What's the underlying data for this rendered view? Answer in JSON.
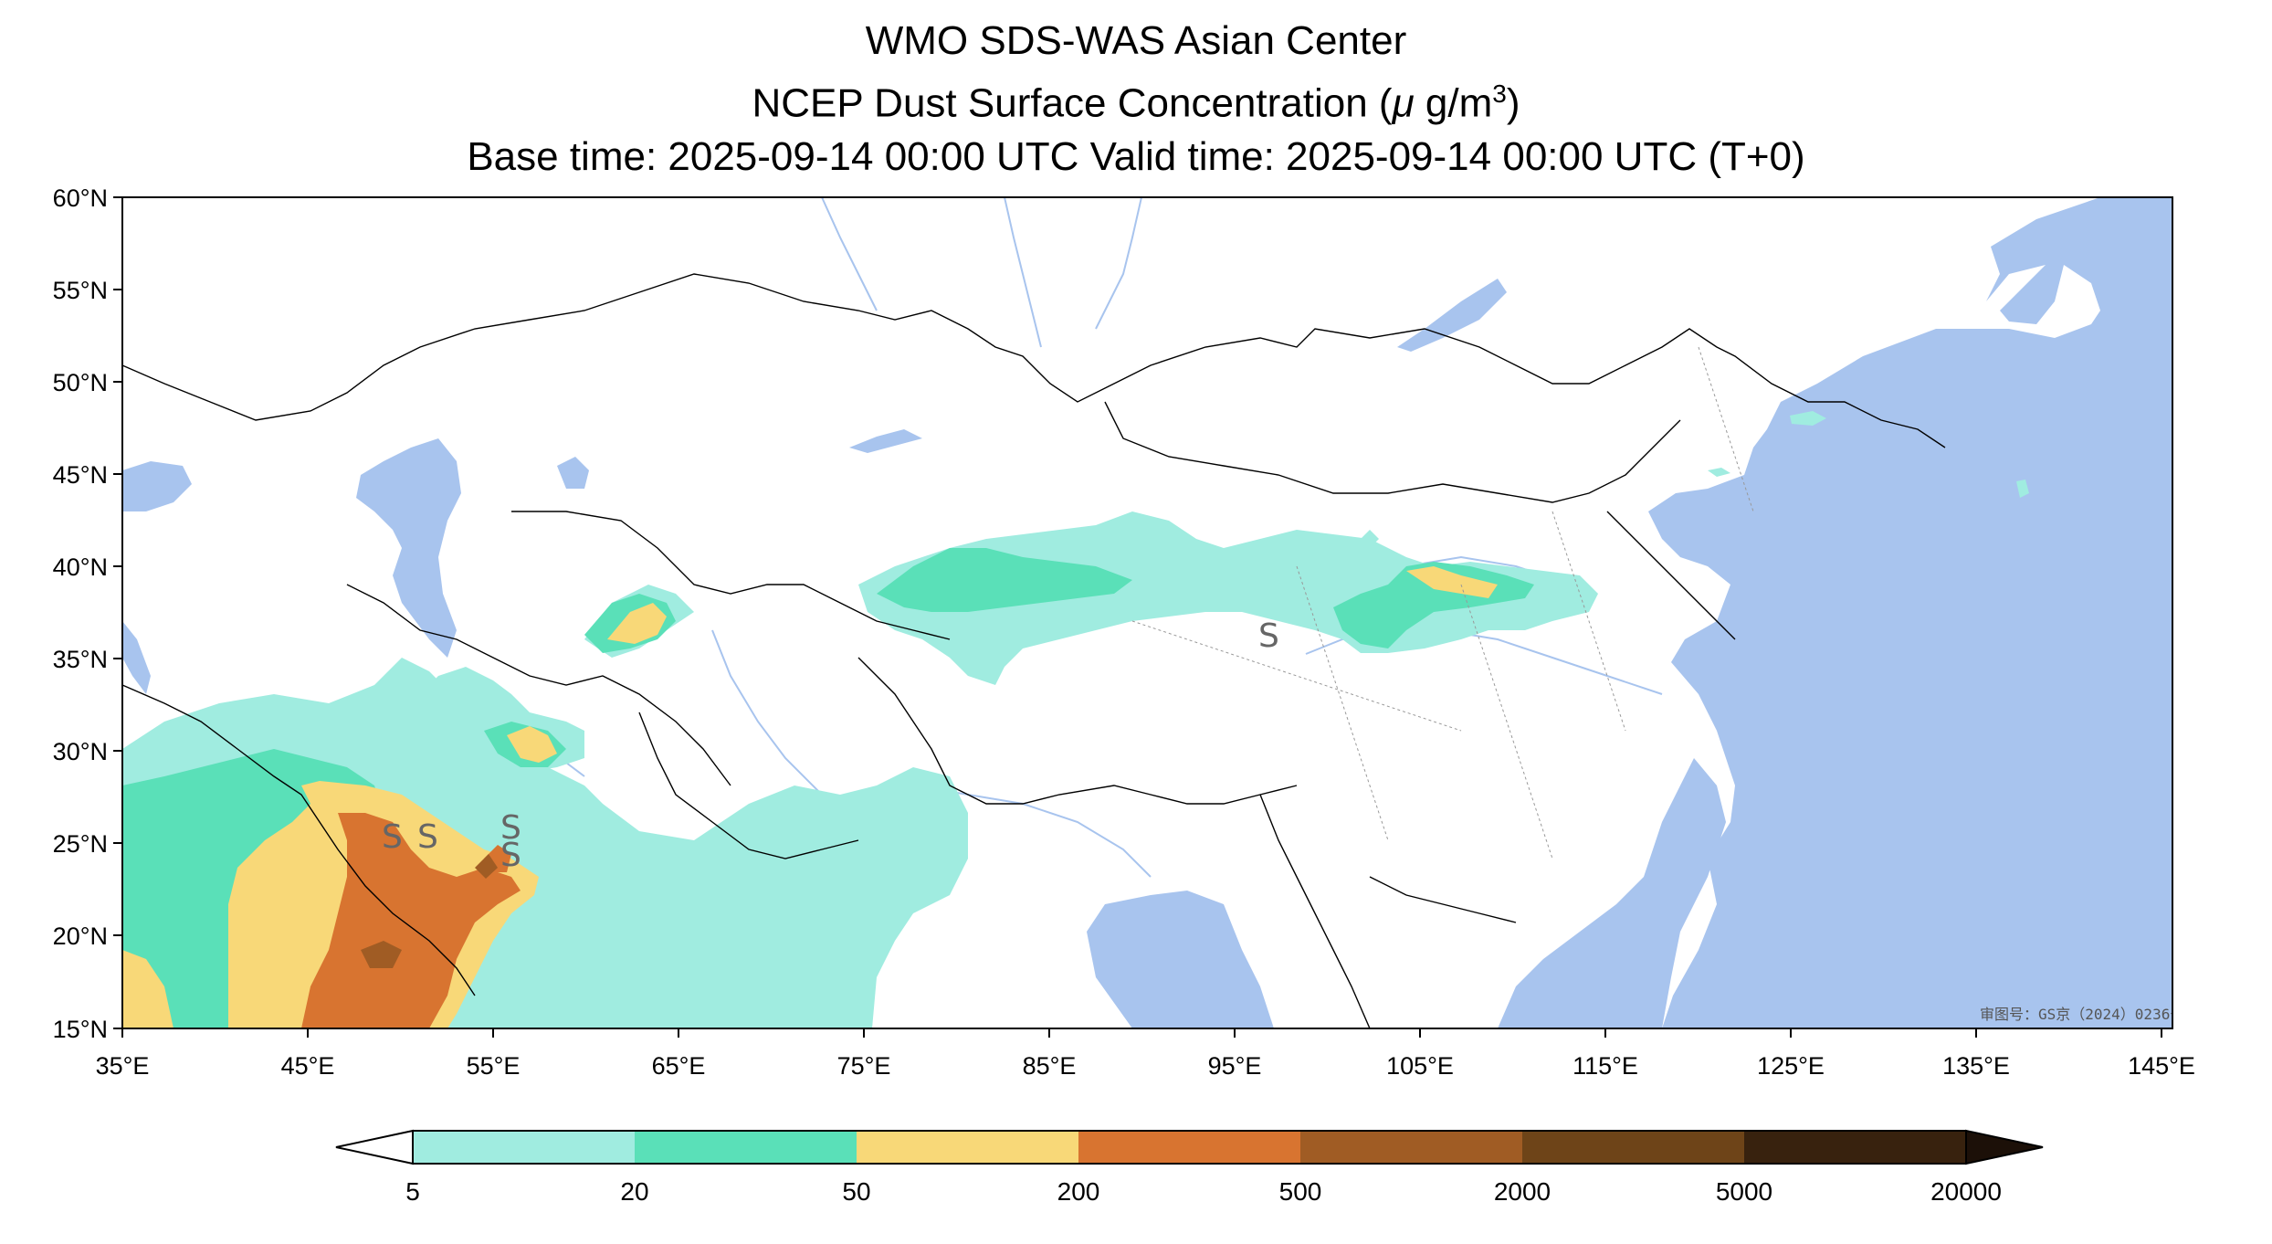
{
  "titles": {
    "line1": "WMO SDS-WAS Asian Center",
    "line2_prefix": "NCEP Dust Surface Concentration (",
    "line2_mu": "μ",
    "line2_unit": " g/m",
    "line2_exp": "3",
    "line2_suffix": ")",
    "line3": "Base time: 2025-09-14 00:00 UTC Valid time: 2025-09-14 00:00 UTC (T+0)"
  },
  "map": {
    "lon_range": [
      35,
      150
    ],
    "lat_range": [
      15,
      60
    ],
    "lat_ticks": [
      "60°N",
      "55°N",
      "50°N",
      "45°N",
      "40°N",
      "35°N",
      "30°N",
      "25°N",
      "20°N",
      "15°N"
    ],
    "lon_ticks": [
      "35°E",
      "45°E",
      "55°E",
      "65°E",
      "75°E",
      "85°E",
      "95°E",
      "105°E",
      "115°E",
      "125°E",
      "135°E",
      "145°E"
    ],
    "approval_number": "审图号：GS京（2024）0236号",
    "storm_markers": [
      "S",
      "S",
      "S",
      "S",
      "S"
    ],
    "colors": {
      "ocean": "#a8c4ee",
      "river": "#a8c4ee",
      "land": "#ffffff",
      "border": "#000000"
    }
  },
  "colorbar": {
    "levels": [
      "5",
      "20",
      "50",
      "200",
      "500",
      "2000",
      "5000",
      "20000"
    ],
    "colors": [
      "#a0ece0",
      "#5ae0b8",
      "#f8d878",
      "#d87430",
      "#a05c24",
      "#6e4418",
      "#38220e",
      "#1c1008"
    ],
    "under_color": "#ffffff"
  }
}
